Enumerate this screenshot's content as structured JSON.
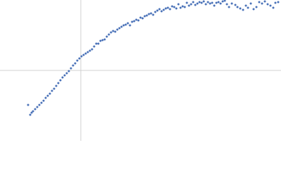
{
  "chart_data": {
    "type": "scatter",
    "color": "#4a72b8",
    "xlim": [
      -115,
      285
    ],
    "ylim": [
      -100,
      100
    ],
    "x": [
      -75,
      -72,
      -70,
      -68,
      -65,
      -62,
      -59,
      -56,
      -53,
      -50,
      -47,
      -44,
      -41,
      -38,
      -35,
      -32,
      -29,
      -26,
      -23,
      -20,
      -17,
      -14,
      -11,
      -8,
      -5,
      -2,
      1,
      4,
      7,
      10,
      13,
      16,
      19,
      22,
      25,
      28,
      31,
      34,
      37,
      40,
      43,
      46,
      49,
      52,
      55,
      58,
      61,
      64,
      67,
      70,
      73,
      76,
      79,
      82,
      85,
      88,
      91,
      94,
      97,
      100,
      103,
      106,
      109,
      112,
      115,
      118,
      121,
      124,
      127,
      130,
      133,
      136,
      139,
      142,
      145,
      148,
      151,
      154,
      157,
      160,
      163,
      166,
      169,
      172,
      175,
      178,
      181,
      184,
      187,
      190,
      193,
      196,
      199,
      202,
      205,
      208,
      211,
      215,
      220,
      223,
      227,
      231,
      235,
      238,
      242,
      246,
      250,
      254,
      258,
      262,
      266,
      270,
      274,
      277,
      281
    ],
    "y": [
      -49,
      -63,
      -60,
      -58,
      -55,
      -52,
      -49,
      -46,
      -43,
      -39,
      -36,
      -33,
      -29,
      -26,
      -22,
      -18,
      -14,
      -10,
      -7,
      -4,
      -1,
      3,
      7,
      10,
      14,
      17,
      20,
      22,
      24,
      26,
      28,
      30,
      34,
      38,
      38,
      42,
      43,
      44,
      48,
      51,
      54,
      56,
      55,
      58,
      60,
      62,
      64,
      65,
      67,
      64,
      69,
      70,
      72,
      71,
      75,
      74,
      77,
      78,
      80,
      81,
      79,
      83,
      85,
      87,
      84,
      86,
      88,
      89,
      87,
      91,
      90,
      88,
      94,
      89,
      91,
      90,
      96,
      92,
      94,
      97,
      93,
      95,
      97,
      96,
      98,
      94,
      97,
      95,
      96,
      92,
      96,
      97,
      95,
      98,
      99,
      94,
      90,
      95,
      93,
      90,
      88,
      86,
      92,
      89,
      95,
      87,
      90,
      97,
      95,
      98,
      94,
      92,
      89,
      96,
      97
    ]
  }
}
